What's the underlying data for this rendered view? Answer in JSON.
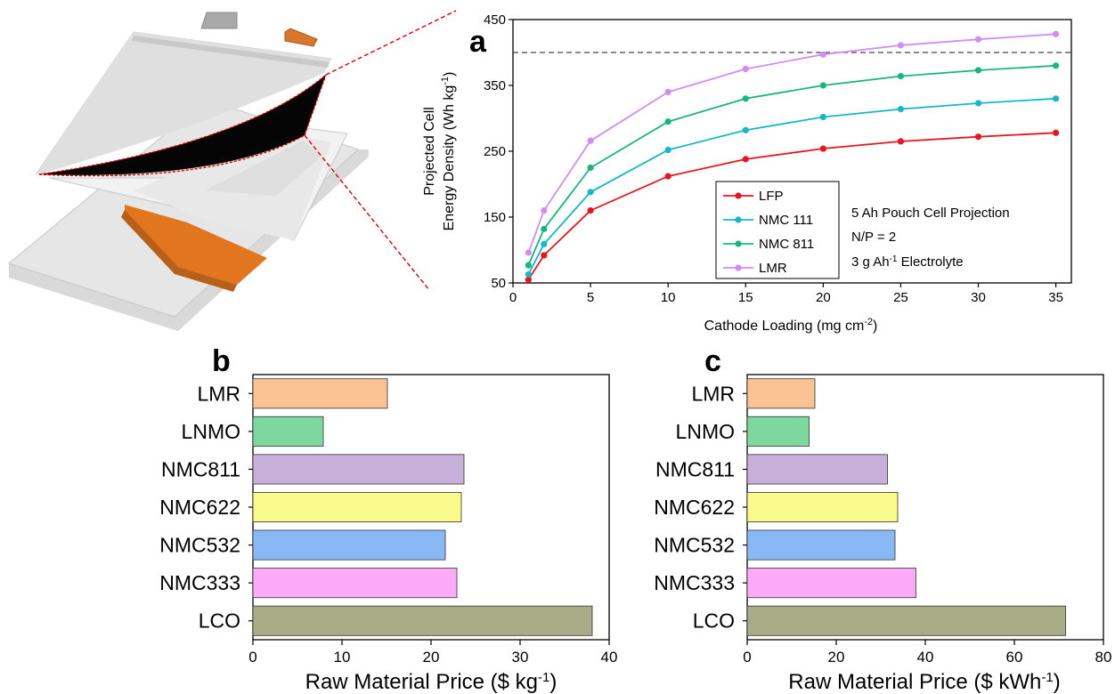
{
  "panel_labels": {
    "a": "a",
    "b": "b",
    "c": "c"
  },
  "chart_data": [
    {
      "panel": "a",
      "type": "line",
      "ylabel_line1": "Projected Cell",
      "ylabel_line2": "Energy Density (Wh kg",
      "ylabel_sup": "-1",
      "ylabel_end": ")",
      "xlabel": "Cathode Loading (mg cm",
      "xlabel_sup": "-2",
      "xlabel_end": ")",
      "xlim": [
        0,
        36
      ],
      "ylim": [
        50,
        450
      ],
      "xticks": [
        0,
        5,
        10,
        15,
        20,
        25,
        30,
        35
      ],
      "yticks": [
        50,
        150,
        250,
        350,
        450
      ],
      "reference_line_y": 400,
      "grid": false,
      "legend_position": "bottom-center",
      "x": [
        1,
        2,
        5,
        10,
        15,
        20,
        25,
        30,
        35
      ],
      "series": [
        {
          "name": "LFP",
          "color": "#e8141e",
          "values": [
            55,
            92,
            160,
            212,
            238,
            254,
            265,
            272,
            278
          ]
        },
        {
          "name": "NMC 111",
          "color": "#14b8c8",
          "values": [
            63,
            109,
            188,
            252,
            282,
            302,
            314,
            323,
            330
          ]
        },
        {
          "name": "NMC 811",
          "color": "#14b87a",
          "values": [
            77,
            132,
            225,
            295,
            330,
            350,
            364,
            373,
            380
          ]
        },
        {
          "name": "LMR",
          "color": "#d28cf5",
          "values": [
            96,
            160,
            266,
            340,
            375,
            397,
            411,
            420,
            428
          ]
        }
      ],
      "annotation": {
        "line1": "5 Ah Pouch Cell Projection",
        "line2": "N/P = 2",
        "line3_pre": "3 g Ah",
        "line3_sup": "-1",
        "line3_post": " Electrolyte"
      }
    },
    {
      "panel": "b",
      "type": "bar",
      "orientation": "horizontal",
      "categories": [
        "LMR",
        "LNMO",
        "NMC811",
        "NMC622",
        "NMC532",
        "NMC333",
        "LCO"
      ],
      "values": [
        15.1,
        7.9,
        23.7,
        23.4,
        21.6,
        22.9,
        38.1
      ],
      "colors": [
        "#fbc393",
        "#7dd89e",
        "#c9b0da",
        "#fafa8c",
        "#89b9f5",
        "#fbaaf7",
        "#a9ad87"
      ],
      "xlim": [
        0,
        40
      ],
      "xticks": [
        0,
        10,
        20,
        30,
        40
      ],
      "xlabel": "Raw Material Price ($ kg",
      "xlabel_sup": "-1",
      "xlabel_end": ")"
    },
    {
      "panel": "c",
      "type": "bar",
      "orientation": "horizontal",
      "categories": [
        "LMR",
        "LNMO",
        "NMC811",
        "NMC622",
        "NMC532",
        "NMC333",
        "LCO"
      ],
      "values": [
        15.2,
        13.9,
        31.5,
        33.8,
        33.2,
        37.9,
        71.5
      ],
      "colors": [
        "#fbc393",
        "#7dd89e",
        "#c9b0da",
        "#fafa8c",
        "#89b9f5",
        "#fbaaf7",
        "#a9ad87"
      ],
      "xlim": [
        0,
        80
      ],
      "xticks": [
        0,
        20,
        40,
        60,
        80
      ],
      "xlabel": "Raw Material Price ($ kWh",
      "xlabel_sup": "-1",
      "xlabel_end": ")"
    }
  ]
}
